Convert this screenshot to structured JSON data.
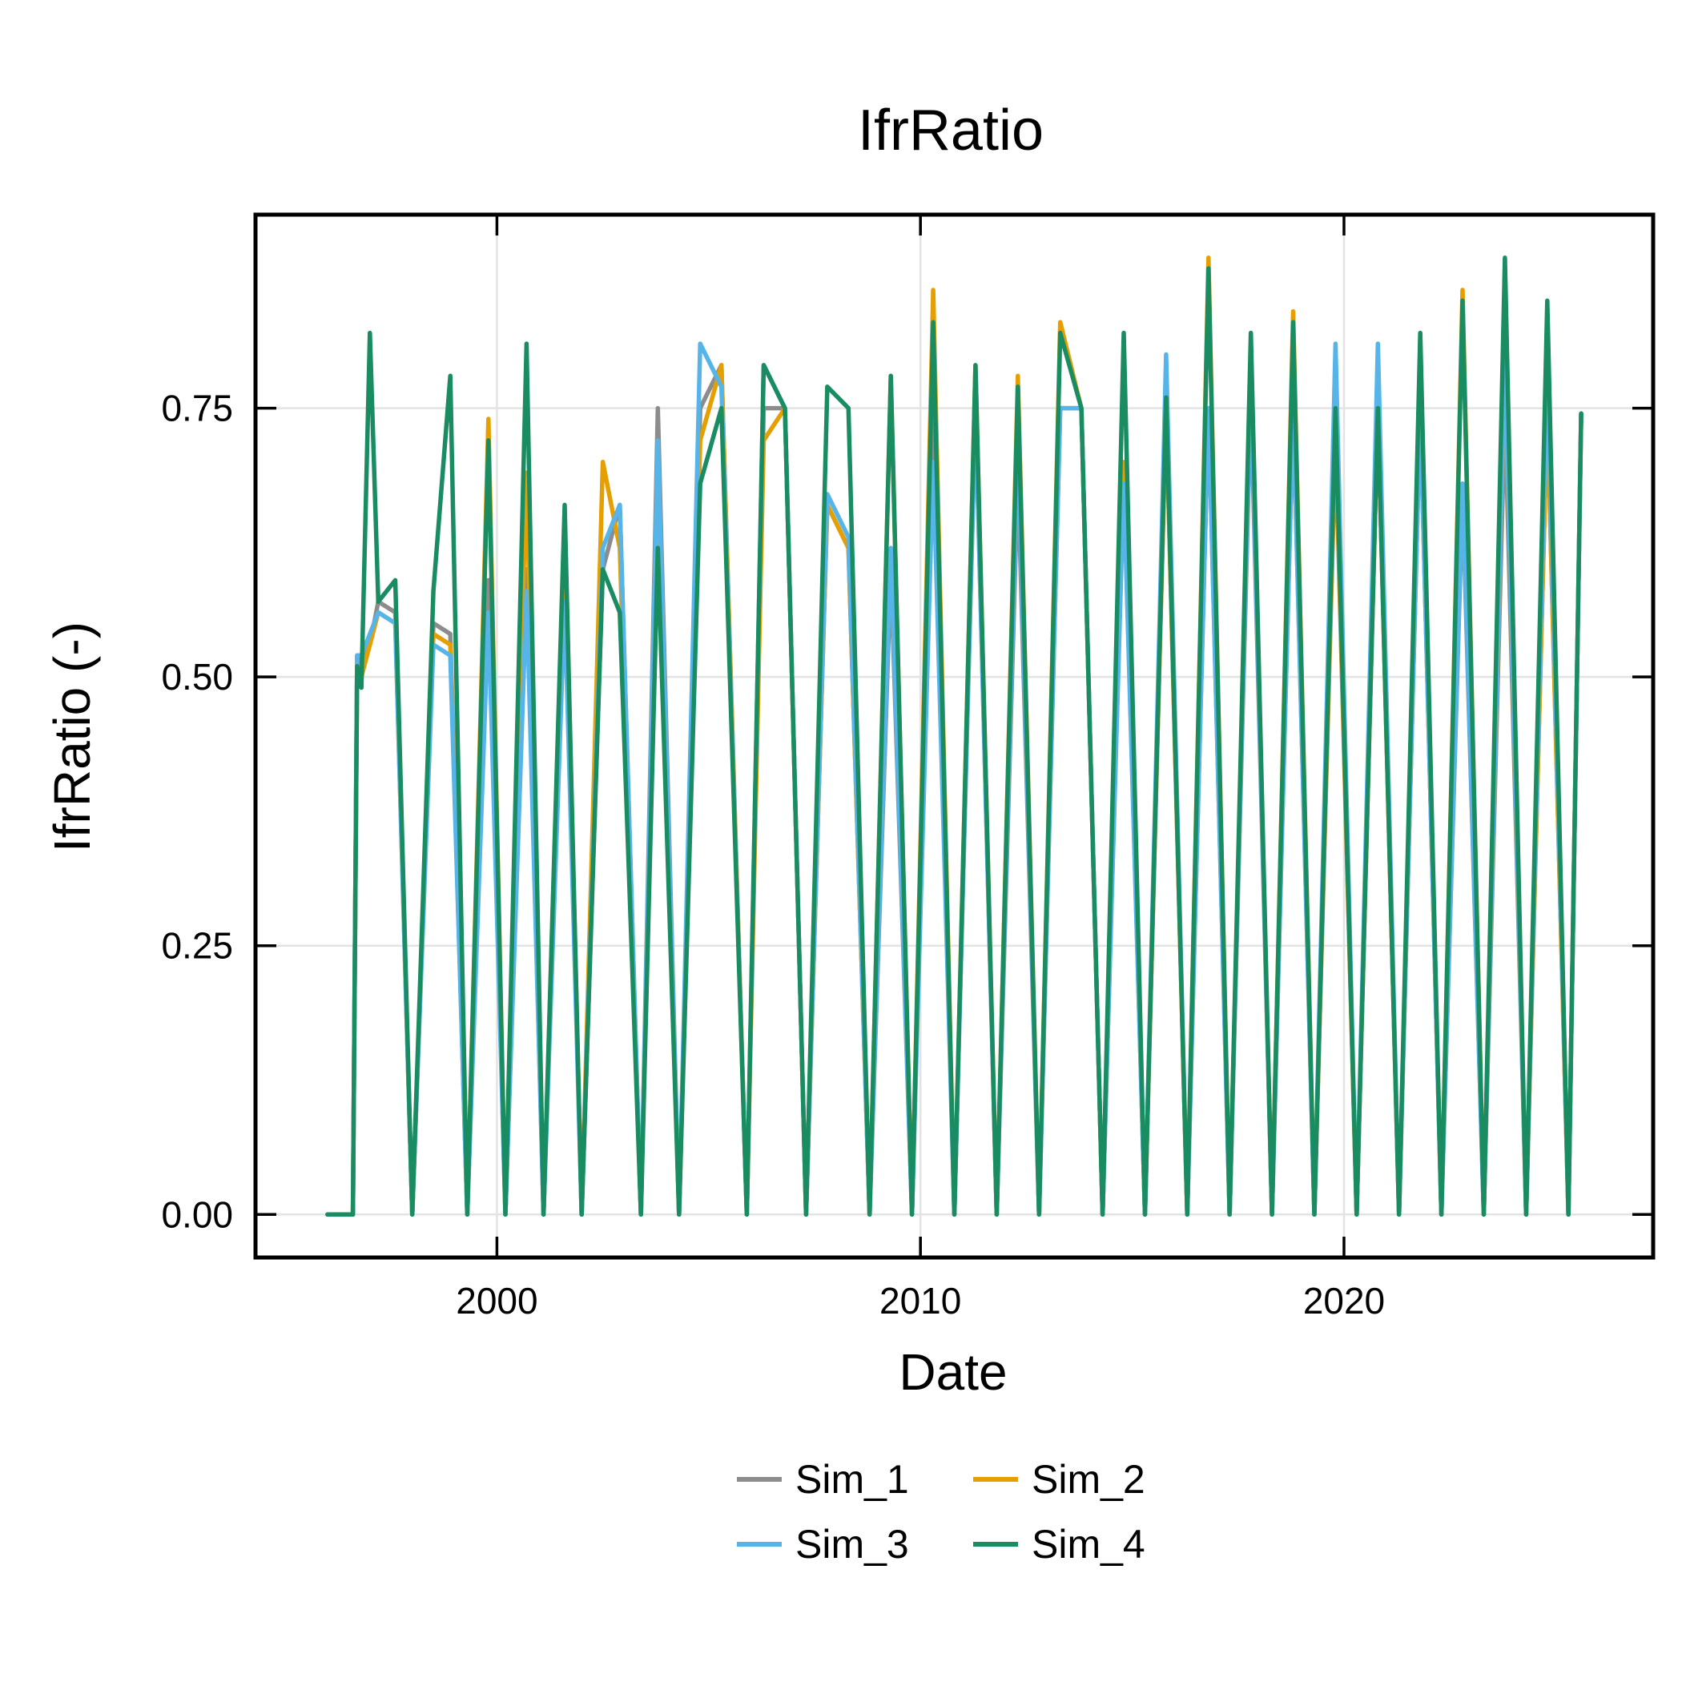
{
  "chart_data": {
    "type": "line",
    "title": "IfrRatio",
    "xlabel": "Date",
    "ylabel": "IfrRatio (-)",
    "xlim": [
      1994.3,
      2027.3
    ],
    "ylim": [
      -0.04,
      0.93
    ],
    "xticks": [
      2000,
      2010,
      2020
    ],
    "xtick_labels": [
      "2000",
      "2010",
      "2020"
    ],
    "yticks": [
      0,
      0.25,
      0.5,
      0.75
    ],
    "ytick_labels": [
      "0.00",
      "0.25",
      "0.50",
      "0.75"
    ],
    "grid": true,
    "legend_position": "bottom-center",
    "series": [
      {
        "name": "Sim_1",
        "color": "#8c8c8c",
        "x": [
          1996.0,
          1996.6,
          1996.7,
          1996.8,
          1997.0,
          1997.2,
          1997.6,
          1998.0,
          1998.5,
          1998.9,
          1999.3,
          1999.8,
          2000.2,
          2000.7,
          2001.1,
          2001.6,
          2002.0,
          2002.5,
          2002.9,
          2003.4,
          2003.8,
          2004.3,
          2004.8,
          2005.3,
          2005.9,
          2006.3,
          2006.8,
          2007.3,
          2007.8,
          2008.3,
          2008.8,
          2009.3,
          2009.8,
          2010.3,
          2010.8,
          2011.3,
          2011.8,
          2012.3,
          2012.8,
          2013.3,
          2013.8,
          2014.3,
          2014.8,
          2015.3,
          2015.8,
          2016.3,
          2016.8,
          2017.3,
          2017.8,
          2018.3,
          2018.8,
          2019.3,
          2019.8,
          2020.3,
          2020.8,
          2021.3,
          2021.8,
          2022.3,
          2022.8,
          2023.3,
          2023.8,
          2024.3,
          2024.8,
          2025.3,
          2025.6
        ],
        "y": [
          0.0,
          0.0,
          0.52,
          0.51,
          0.53,
          0.57,
          0.56,
          0.0,
          0.55,
          0.54,
          0.0,
          0.59,
          0.0,
          0.6,
          0.0,
          0.62,
          0.0,
          0.6,
          0.66,
          0.0,
          0.75,
          0.0,
          0.75,
          0.79,
          0.0,
          0.75,
          0.75,
          0.0,
          0.66,
          0.62,
          0.0,
          0.6,
          0.0,
          0.75,
          0.0,
          0.75,
          0.0,
          0.69,
          0.0,
          0.75,
          0.75,
          0.0,
          0.69,
          0.0,
          0.75,
          0.0,
          0.75,
          0.0,
          0.76,
          0.0,
          0.75,
          0.0,
          0.72,
          0.0,
          0.75,
          0.0,
          0.75,
          0.0,
          0.67,
          0.0,
          0.75,
          0.0,
          0.75,
          0.0,
          0.745
        ]
      },
      {
        "name": "Sim_2",
        "color": "#e69f00",
        "x": [
          1996.0,
          1996.6,
          1996.7,
          1996.8,
          1997.0,
          1997.2,
          1997.6,
          1998.0,
          1998.5,
          1998.9,
          1999.3,
          1999.8,
          2000.2,
          2000.7,
          2001.1,
          2001.6,
          2002.0,
          2002.5,
          2002.9,
          2003.4,
          2003.8,
          2004.3,
          2004.8,
          2005.3,
          2005.9,
          2006.3,
          2006.8,
          2007.3,
          2007.8,
          2008.3,
          2008.8,
          2009.3,
          2009.8,
          2010.3,
          2010.8,
          2011.3,
          2011.8,
          2012.3,
          2012.8,
          2013.3,
          2013.8,
          2014.3,
          2014.8,
          2015.3,
          2015.8,
          2016.3,
          2016.8,
          2017.3,
          2017.8,
          2018.3,
          2018.8,
          2019.3,
          2019.8,
          2020.3,
          2020.8,
          2021.3,
          2021.8,
          2022.3,
          2022.8,
          2023.3,
          2023.8,
          2024.3,
          2024.8,
          2025.3,
          2025.6
        ],
        "y": [
          0.0,
          0.0,
          0.51,
          0.5,
          0.53,
          0.56,
          0.55,
          0.0,
          0.54,
          0.53,
          0.0,
          0.74,
          0.0,
          0.69,
          0.0,
          0.65,
          0.0,
          0.7,
          0.62,
          0.0,
          0.7,
          0.0,
          0.72,
          0.79,
          0.0,
          0.72,
          0.75,
          0.0,
          0.66,
          0.62,
          0.0,
          0.78,
          0.0,
          0.86,
          0.0,
          0.79,
          0.0,
          0.78,
          0.0,
          0.83,
          0.75,
          0.0,
          0.7,
          0.0,
          0.75,
          0.0,
          0.89,
          0.0,
          0.79,
          0.0,
          0.84,
          0.0,
          0.73,
          0.0,
          0.75,
          0.0,
          0.75,
          0.0,
          0.86,
          0.0,
          0.79,
          0.0,
          0.75,
          0.0,
          0.745
        ]
      },
      {
        "name": "Sim_3",
        "color": "#56b4e9",
        "x": [
          1996.0,
          1996.6,
          1996.7,
          1996.8,
          1997.0,
          1997.2,
          1997.6,
          1998.0,
          1998.5,
          1998.9,
          1999.3,
          1999.8,
          2000.2,
          2000.7,
          2001.1,
          2001.6,
          2002.0,
          2002.5,
          2002.9,
          2003.4,
          2003.8,
          2004.3,
          2004.8,
          2005.3,
          2005.9,
          2006.3,
          2006.8,
          2007.3,
          2007.8,
          2008.3,
          2008.8,
          2009.3,
          2009.8,
          2010.3,
          2010.8,
          2011.3,
          2011.8,
          2012.3,
          2012.8,
          2013.3,
          2013.8,
          2014.3,
          2014.8,
          2015.3,
          2015.8,
          2016.3,
          2016.8,
          2017.3,
          2017.8,
          2018.3,
          2018.8,
          2019.3,
          2019.8,
          2020.3,
          2020.8,
          2021.3,
          2021.8,
          2022.3,
          2022.8,
          2023.3,
          2023.8,
          2024.3,
          2024.8,
          2025.3,
          2025.6
        ],
        "y": [
          0.0,
          0.0,
          0.52,
          0.52,
          0.54,
          0.56,
          0.55,
          0.0,
          0.53,
          0.52,
          0.0,
          0.56,
          0.0,
          0.58,
          0.0,
          0.57,
          0.0,
          0.62,
          0.66,
          0.0,
          0.72,
          0.0,
          0.81,
          0.77,
          0.0,
          0.79,
          0.75,
          0.0,
          0.67,
          0.63,
          0.0,
          0.62,
          0.0,
          0.7,
          0.0,
          0.75,
          0.0,
          0.72,
          0.0,
          0.75,
          0.75,
          0.0,
          0.68,
          0.0,
          0.8,
          0.0,
          0.75,
          0.0,
          0.78,
          0.0,
          0.75,
          0.0,
          0.81,
          0.0,
          0.81,
          0.0,
          0.75,
          0.0,
          0.68,
          0.0,
          0.8,
          0.0,
          0.79,
          0.0,
          0.745
        ]
      },
      {
        "name": "Sim_4",
        "color": "#1a8c62",
        "x": [
          1996.0,
          1996.6,
          1996.7,
          1996.8,
          1997.0,
          1997.2,
          1997.6,
          1998.0,
          1998.5,
          1998.9,
          1999.3,
          1999.8,
          2000.2,
          2000.7,
          2001.1,
          2001.6,
          2002.0,
          2002.5,
          2002.9,
          2003.4,
          2003.8,
          2004.3,
          2004.8,
          2005.3,
          2005.9,
          2006.3,
          2006.8,
          2007.3,
          2007.8,
          2008.3,
          2008.8,
          2009.3,
          2009.8,
          2010.3,
          2010.8,
          2011.3,
          2011.8,
          2012.3,
          2012.8,
          2013.3,
          2013.8,
          2014.3,
          2014.8,
          2015.3,
          2015.8,
          2016.3,
          2016.8,
          2017.3,
          2017.8,
          2018.3,
          2018.8,
          2019.3,
          2019.8,
          2020.3,
          2020.8,
          2021.3,
          2021.8,
          2022.3,
          2022.8,
          2023.3,
          2023.8,
          2024.3,
          2024.8,
          2025.3,
          2025.6
        ],
        "y": [
          0.0,
          0.0,
          0.51,
          0.49,
          0.82,
          0.57,
          0.59,
          0.0,
          0.58,
          0.78,
          0.0,
          0.72,
          0.0,
          0.81,
          0.0,
          0.66,
          0.0,
          0.6,
          0.56,
          0.0,
          0.62,
          0.0,
          0.68,
          0.75,
          0.0,
          0.79,
          0.75,
          0.0,
          0.77,
          0.75,
          0.0,
          0.78,
          0.0,
          0.83,
          0.0,
          0.79,
          0.0,
          0.77,
          0.0,
          0.82,
          0.75,
          0.0,
          0.82,
          0.0,
          0.76,
          0.0,
          0.88,
          0.0,
          0.82,
          0.0,
          0.83,
          0.0,
          0.75,
          0.0,
          0.75,
          0.0,
          0.82,
          0.0,
          0.85,
          0.0,
          0.89,
          0.0,
          0.85,
          0.0,
          0.745
        ]
      }
    ]
  }
}
